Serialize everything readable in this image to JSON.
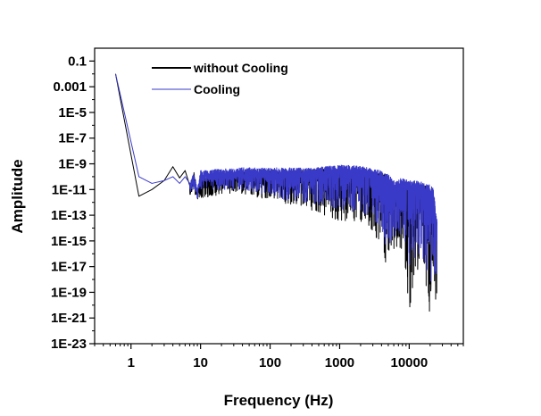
{
  "chart_data": {
    "type": "line",
    "title": "",
    "xlabel": "Frequency (Hz)",
    "ylabel": "Amplitude",
    "x_scale": "log",
    "y_scale": "log",
    "xlim": [
      0.3,
      60000
    ],
    "ylim": [
      1e-23,
      1
    ],
    "x_ticks": [
      {
        "value": 1,
        "label": "1"
      },
      {
        "value": 10,
        "label": "10"
      },
      {
        "value": 100,
        "label": "100"
      },
      {
        "value": 1000,
        "label": "1000"
      },
      {
        "value": 10000,
        "label": "10000"
      }
    ],
    "y_ticks": [
      {
        "value": 0.1,
        "label": "0.1"
      },
      {
        "value": 0.001,
        "label": "0.001"
      },
      {
        "value": 1e-05,
        "label": "1E-5"
      },
      {
        "value": 1e-07,
        "label": "1E-7"
      },
      {
        "value": 1e-09,
        "label": "1E-9"
      },
      {
        "value": 1e-11,
        "label": "1E-11"
      },
      {
        "value": 1e-13,
        "label": "1E-13"
      },
      {
        "value": 1e-15,
        "label": "1E-15"
      },
      {
        "value": 1e-17,
        "label": "1E-17"
      },
      {
        "value": 1e-19,
        "label": "1E-19"
      },
      {
        "value": 1e-21,
        "label": "1E-21"
      },
      {
        "value": 1e-23,
        "label": "1E-23"
      }
    ],
    "grid": false,
    "legend_position": "top-left",
    "series": [
      {
        "name": "without Cooling",
        "color": "#000000",
        "x": [
          0.6,
          1.3,
          2,
          3,
          4,
          5,
          6,
          7,
          8,
          9,
          10,
          13,
          18,
          25,
          40,
          70,
          120,
          200,
          350,
          600,
          1000,
          1500,
          2200,
          3000,
          4000,
          4800,
          6000,
          8000,
          10000,
          13000,
          17000,
          22000,
          25000
        ],
        "y": [
          0.01,
          3e-12,
          1e-11,
          5e-11,
          6e-10,
          8e-11,
          3e-10,
          2e-11,
          3e-10,
          8e-12,
          1e-10,
          8e-11,
          2e-10,
          2e-10,
          2.5e-10,
          3e-10,
          3e-10,
          3e-10,
          3.5e-10,
          4e-10,
          4e-10,
          4e-10,
          3e-10,
          2.5e-10,
          2e-10,
          1.5e-10,
          1e-11,
          5e-11,
          3e-11,
          3e-11,
          2e-11,
          1e-11,
          3e-14
        ],
        "min_envelope": [
          [
            6,
            3e-12
          ],
          [
            8,
            5e-12
          ],
          [
            10,
            2e-12
          ],
          [
            15,
            3e-12
          ],
          [
            25,
            5e-12
          ],
          [
            40,
            5e-12
          ],
          [
            70,
            2e-12
          ],
          [
            120,
            1e-12
          ],
          [
            200,
            6e-13
          ],
          [
            350,
            3e-13
          ],
          [
            600,
            1e-13
          ],
          [
            1000,
            3e-14
          ],
          [
            1500,
            5e-14
          ],
          [
            2200,
            1e-14
          ],
          [
            3000,
            2e-15
          ],
          [
            4000,
            1e-15
          ],
          [
            4800,
            3e-19
          ],
          [
            5500,
            1e-16
          ],
          [
            7000,
            3e-16
          ],
          [
            8500,
            1e-16
          ],
          [
            10000,
            1e-21
          ],
          [
            12000,
            1e-18
          ],
          [
            15000,
            5e-17
          ],
          [
            18000,
            1e-19
          ],
          [
            20000,
            1e-21
          ],
          [
            22000,
            1e-17
          ],
          [
            24000,
            1e-20
          ]
        ]
      },
      {
        "name": "Cooling",
        "color": "#3a3ac8",
        "x": [
          0.6,
          1.3,
          2,
          3,
          4,
          5,
          6,
          7,
          8,
          9,
          10,
          13,
          18,
          25,
          40,
          70,
          120,
          200,
          350,
          600,
          1000,
          1500,
          2200,
          3000,
          4000,
          4800,
          6000,
          8000,
          10000,
          13000,
          17000,
          22000,
          25000
        ],
        "y": [
          0.01,
          1e-10,
          3e-11,
          5e-11,
          1e-10,
          3e-11,
          1e-10,
          3e-11,
          2e-10,
          1e-11,
          3e-10,
          3e-10,
          4e-10,
          4e-10,
          5e-10,
          5e-10,
          5e-10,
          5e-10,
          5e-10,
          6e-10,
          8e-10,
          8e-10,
          6e-10,
          4e-10,
          3e-10,
          2e-10,
          5e-11,
          8e-11,
          5e-11,
          5e-11,
          3e-11,
          2e-11,
          5e-14
        ],
        "min_envelope": [
          [
            6,
            8e-12
          ],
          [
            8,
            1e-11
          ],
          [
            10,
            1e-11
          ],
          [
            15,
            1e-11
          ],
          [
            25,
            1e-11
          ],
          [
            40,
            1e-11
          ],
          [
            70,
            5e-12
          ],
          [
            120,
            3e-12
          ],
          [
            200,
            1e-12
          ],
          [
            350,
            1e-12
          ],
          [
            600,
            5e-13
          ],
          [
            1000,
            3e-13
          ],
          [
            1500,
            2e-13
          ],
          [
            2200,
            1e-13
          ],
          [
            3000,
            5e-14
          ],
          [
            4000,
            1e-14
          ],
          [
            4800,
            1e-16
          ],
          [
            5500,
            1e-15
          ],
          [
            7000,
            5e-15
          ],
          [
            8500,
            1e-15
          ],
          [
            10000,
            1e-17
          ],
          [
            12000,
            5e-17
          ],
          [
            15000,
            1e-16
          ],
          [
            18000,
            1e-18
          ],
          [
            20000,
            1e-19
          ],
          [
            22000,
            1e-17
          ],
          [
            24000,
            1e-19
          ]
        ]
      }
    ]
  }
}
